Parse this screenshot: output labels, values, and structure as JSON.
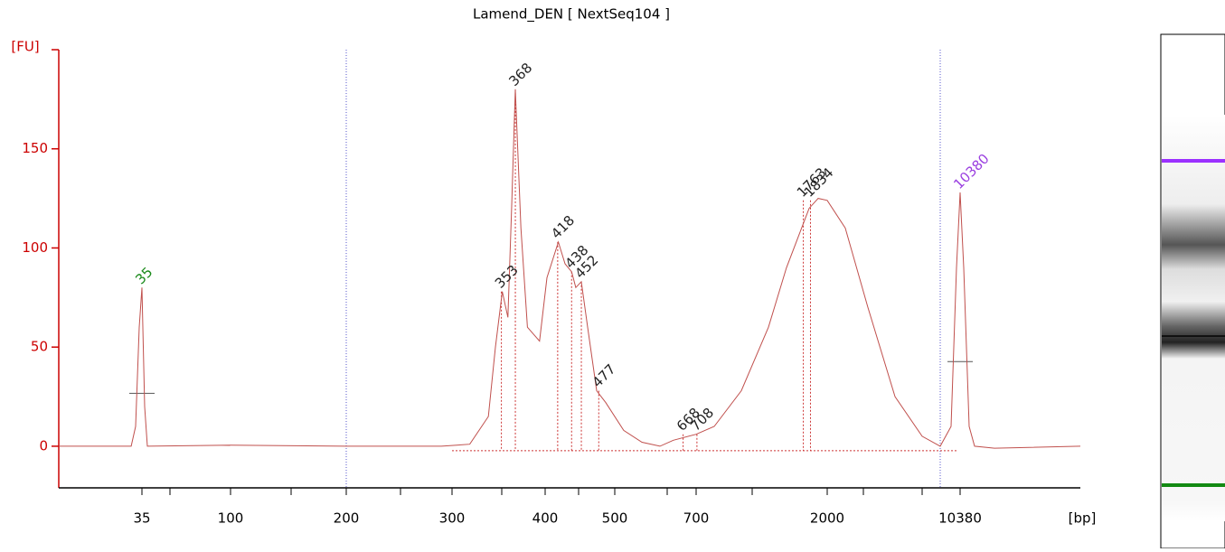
{
  "chart_data": {
    "type": "line",
    "title": "Lamend_DEN  [ NextSeq104 ]",
    "y_label": "[FU]",
    "x_label": "[bp]",
    "ylim": [
      -21,
      200
    ],
    "yticks": [
      0,
      50,
      100,
      150
    ],
    "xlim": [
      1,
      18000
    ],
    "xticks": [
      35,
      100,
      200,
      300,
      400,
      500,
      700,
      2000,
      10380
    ],
    "axis_color": "#cc0000",
    "trace": {
      "color": "#c0504d",
      "x": [
        1,
        30.6,
        32.4,
        33.9,
        35,
        37,
        39,
        100,
        200,
        290,
        319,
        339,
        346.6,
        354,
        360,
        364,
        368,
        374,
        381,
        394,
        402.6,
        419,
        428.6,
        438,
        444,
        452,
        461,
        474,
        487,
        522,
        567,
        611,
        644,
        700,
        879,
        1148,
        1417,
        1596,
        1821,
        1910,
        2000,
        3140,
        4566,
        6276,
        7986,
        9126,
        9810,
        10152,
        10380,
        10609,
        10953,
        11297,
        12557,
        18000
      ],
      "y": [
        0,
        0,
        10,
        60,
        80,
        20,
        0,
        0.5,
        0,
        0,
        1,
        15,
        50,
        78,
        65,
        120,
        180,
        110,
        60,
        53,
        85,
        103,
        92,
        88,
        80,
        83,
        60,
        28,
        22,
        8,
        2,
        0,
        3,
        6,
        10,
        28,
        60,
        90,
        120,
        125,
        124,
        110,
        70,
        25,
        5,
        0,
        10,
        90,
        128,
        90,
        10,
        0,
        -1,
        0
      ]
    },
    "peaks": [
      {
        "bp": 35,
        "fu": 80,
        "color": "#1a8a1a"
      },
      {
        "bp": 353,
        "fu": 78,
        "color": "#222222"
      },
      {
        "bp": 368,
        "fu": 180,
        "color": "#222222"
      },
      {
        "bp": 418,
        "fu": 103,
        "color": "#222222"
      },
      {
        "bp": 438,
        "fu": 88,
        "color": "#222222"
      },
      {
        "bp": 452,
        "fu": 83,
        "color": "#222222"
      },
      {
        "bp": 477,
        "fu": 28,
        "color": "#222222"
      },
      {
        "bp": 668,
        "fu": 6,
        "color": "#222222"
      },
      {
        "bp": 708,
        "fu": 6,
        "color": "#222222"
      },
      {
        "bp": 1763,
        "fu": 124,
        "color": "#222222"
      },
      {
        "bp": 1834,
        "fu": 124,
        "color": "#222222"
      },
      {
        "bp": 10380,
        "fu": 128,
        "color": "#9b40e0"
      }
    ],
    "dotted_lines": [
      200,
      9126
    ]
  }
}
